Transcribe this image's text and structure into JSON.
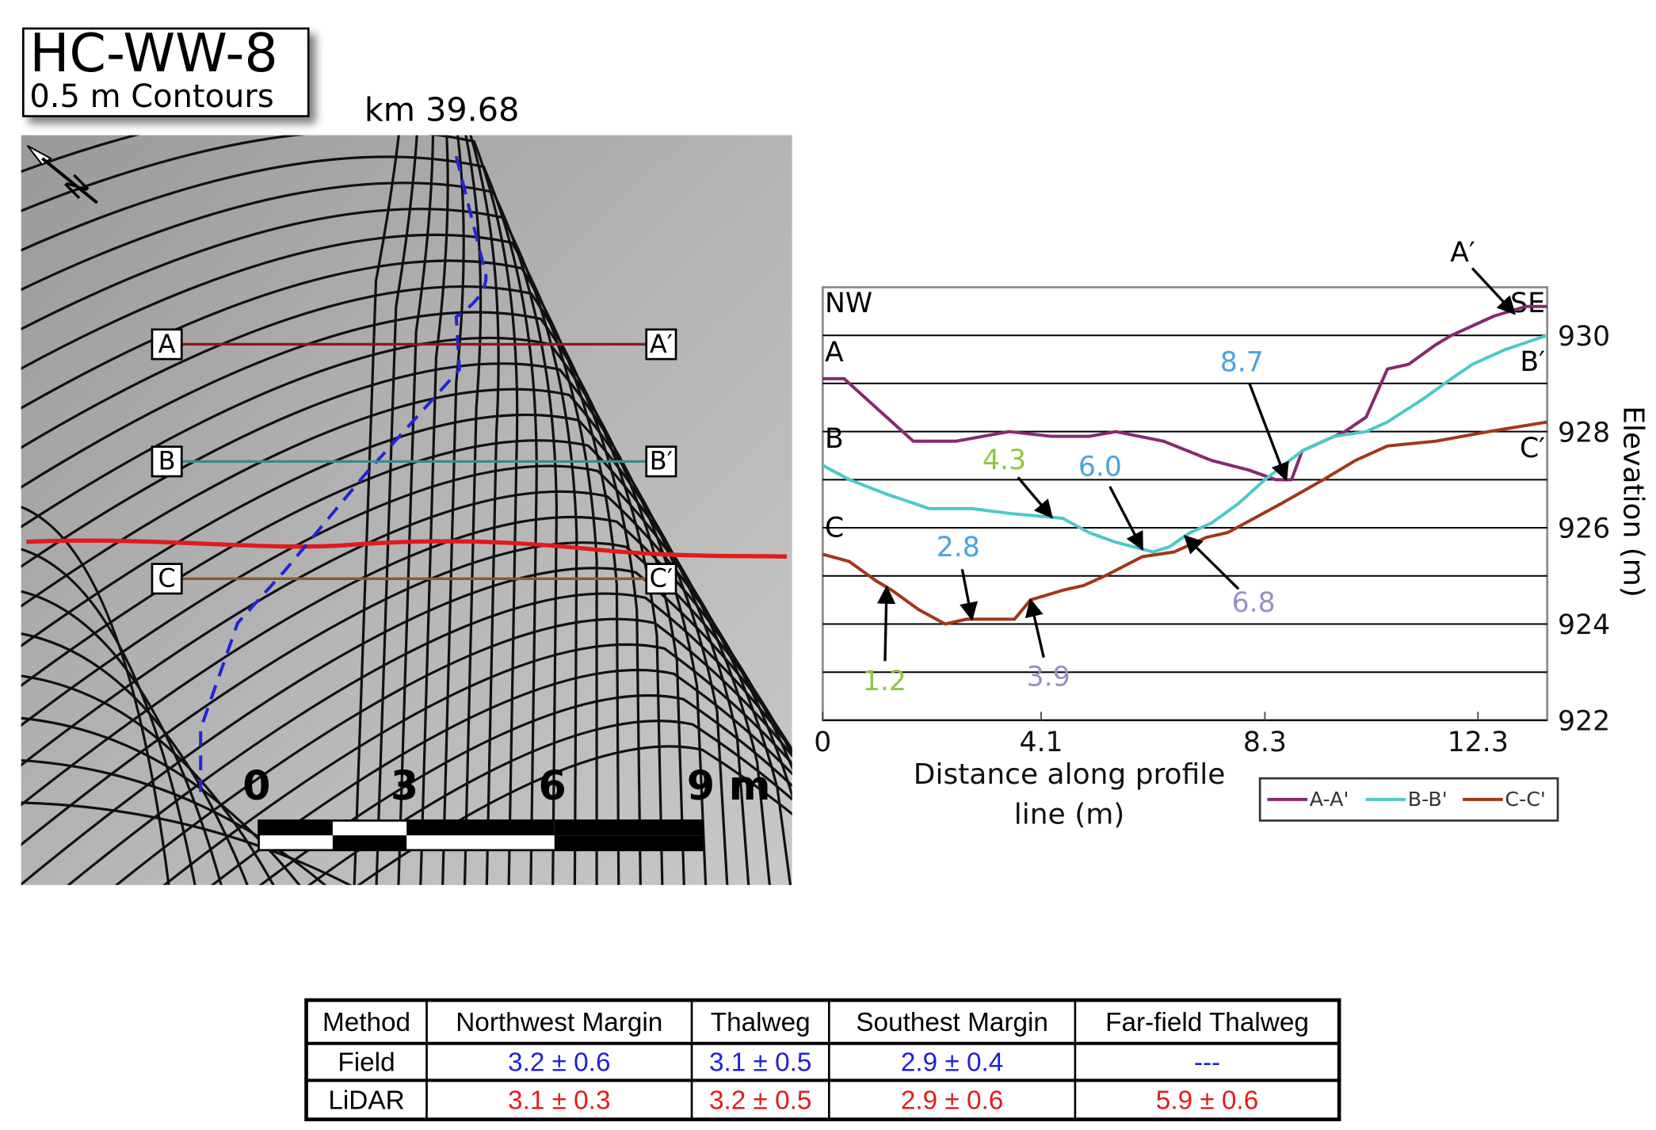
{
  "map": {
    "title": "HC-WW-8",
    "subtitle": "0.5 m Contours",
    "location": "km 39.68",
    "north": "N",
    "sections": [
      {
        "start": "A",
        "end": "A′"
      },
      {
        "start": "B",
        "end": "B′"
      },
      {
        "start": "C",
        "end": "C′"
      }
    ],
    "scale_labels": [
      "0",
      "3",
      "6",
      "9 m"
    ]
  },
  "chart_data": {
    "type": "line",
    "xlabel": "Distance along profile line (m)",
    "ylabel": "Elevation (m)",
    "left_label": "NW",
    "right_label": "SE",
    "xlim": [
      0,
      13.6
    ],
    "ylim": [
      922,
      931
    ],
    "xticks": [
      0,
      4.1,
      8.3,
      12.3
    ],
    "yticks": [
      922,
      924,
      926,
      928,
      930
    ],
    "minor_yticks": [
      923,
      925,
      927,
      929
    ],
    "grid": true,
    "legend": "lower right",
    "series": [
      {
        "name": "A-A'",
        "color": "#862a6f",
        "start_label": "A",
        "end_label": "A′",
        "x": [
          0,
          0.4,
          1.0,
          1.7,
          2.5,
          3.5,
          4.3,
          5.0,
          5.5,
          6.4,
          7.3,
          8.0,
          8.5,
          8.8,
          9.0,
          9.4,
          9.8,
          10.2,
          10.6,
          11.0,
          11.5,
          11.8,
          12.6,
          13.2,
          13.6
        ],
        "values": [
          929.1,
          929.1,
          928.5,
          927.8,
          927.8,
          928.0,
          927.9,
          927.9,
          928.0,
          927.8,
          927.4,
          927.2,
          927.0,
          927.0,
          927.6,
          927.8,
          928.0,
          928.3,
          929.3,
          929.4,
          929.8,
          930.0,
          930.4,
          930.6,
          930.6
        ]
      },
      {
        "name": "B-B'",
        "color": "#4fc8c8",
        "start_label": "B",
        "end_label": "B′",
        "x": [
          0,
          0.5,
          1.2,
          2.0,
          2.8,
          3.5,
          4.5,
          5.0,
          5.5,
          6.2,
          6.5,
          6.9,
          7.3,
          7.8,
          8.3,
          9.0,
          9.6,
          10.2,
          10.6,
          11.3,
          11.8,
          12.2,
          12.8,
          13.6
        ],
        "values": [
          927.3,
          927.0,
          926.7,
          926.4,
          926.4,
          926.3,
          926.2,
          925.9,
          925.7,
          925.5,
          925.6,
          925.9,
          926.1,
          926.5,
          927.0,
          927.6,
          927.9,
          928.0,
          928.2,
          928.7,
          929.1,
          929.4,
          929.7,
          930.0
        ]
      },
      {
        "name": "C-C'",
        "color": "#a0381a",
        "start_label": "C",
        "end_label": "C′",
        "x": [
          0,
          0.5,
          1.0,
          1.3,
          1.8,
          2.3,
          2.7,
          3.3,
          3.6,
          3.9,
          4.5,
          4.9,
          5.3,
          6.0,
          6.6,
          7.2,
          7.6,
          8.1,
          8.6,
          9.4,
          10.0,
          10.6,
          11.5,
          12.5,
          13.6
        ],
        "values": [
          925.45,
          925.3,
          924.9,
          924.7,
          924.3,
          924.0,
          924.1,
          924.1,
          924.1,
          924.5,
          924.7,
          924.8,
          925.0,
          925.4,
          925.5,
          925.8,
          925.9,
          926.2,
          926.5,
          927.0,
          927.4,
          927.7,
          927.8,
          928.0,
          928.2
        ]
      }
    ],
    "annotations": [
      {
        "x": 8.7,
        "label": "8.7",
        "series": 0,
        "color": "#4aa3df"
      },
      {
        "x": 4.3,
        "label": "4.3",
        "series": 1,
        "color": "#8dc63f"
      },
      {
        "x": 6.0,
        "label": "6.0",
        "series": 1,
        "color": "#4aa3df"
      },
      {
        "x": 6.8,
        "label": "6.8",
        "series": 1,
        "color": "#9b8ec4"
      },
      {
        "x": 2.8,
        "label": "2.8",
        "series": 2,
        "color": "#4aa3df"
      },
      {
        "x": 1.2,
        "label": "1.2",
        "series": 2,
        "color": "#8dc63f"
      },
      {
        "x": 3.9,
        "label": "3.9",
        "series": 2,
        "color": "#9b8ec4"
      }
    ]
  },
  "table": {
    "header": [
      "Method",
      "Northwest Margin",
      "Thalweg",
      "Southest Margin",
      "Far-field Thalweg"
    ],
    "rows": [
      [
        "Field",
        "3.2 ± 0.6",
        "3.1 ± 0.5",
        "2.9 ± 0.4",
        "---"
      ],
      [
        "LiDAR",
        "3.1 ± 0.3",
        "3.2 ± 0.5",
        "2.9 ± 0.6",
        "5.9 ± 0.6"
      ]
    ]
  }
}
